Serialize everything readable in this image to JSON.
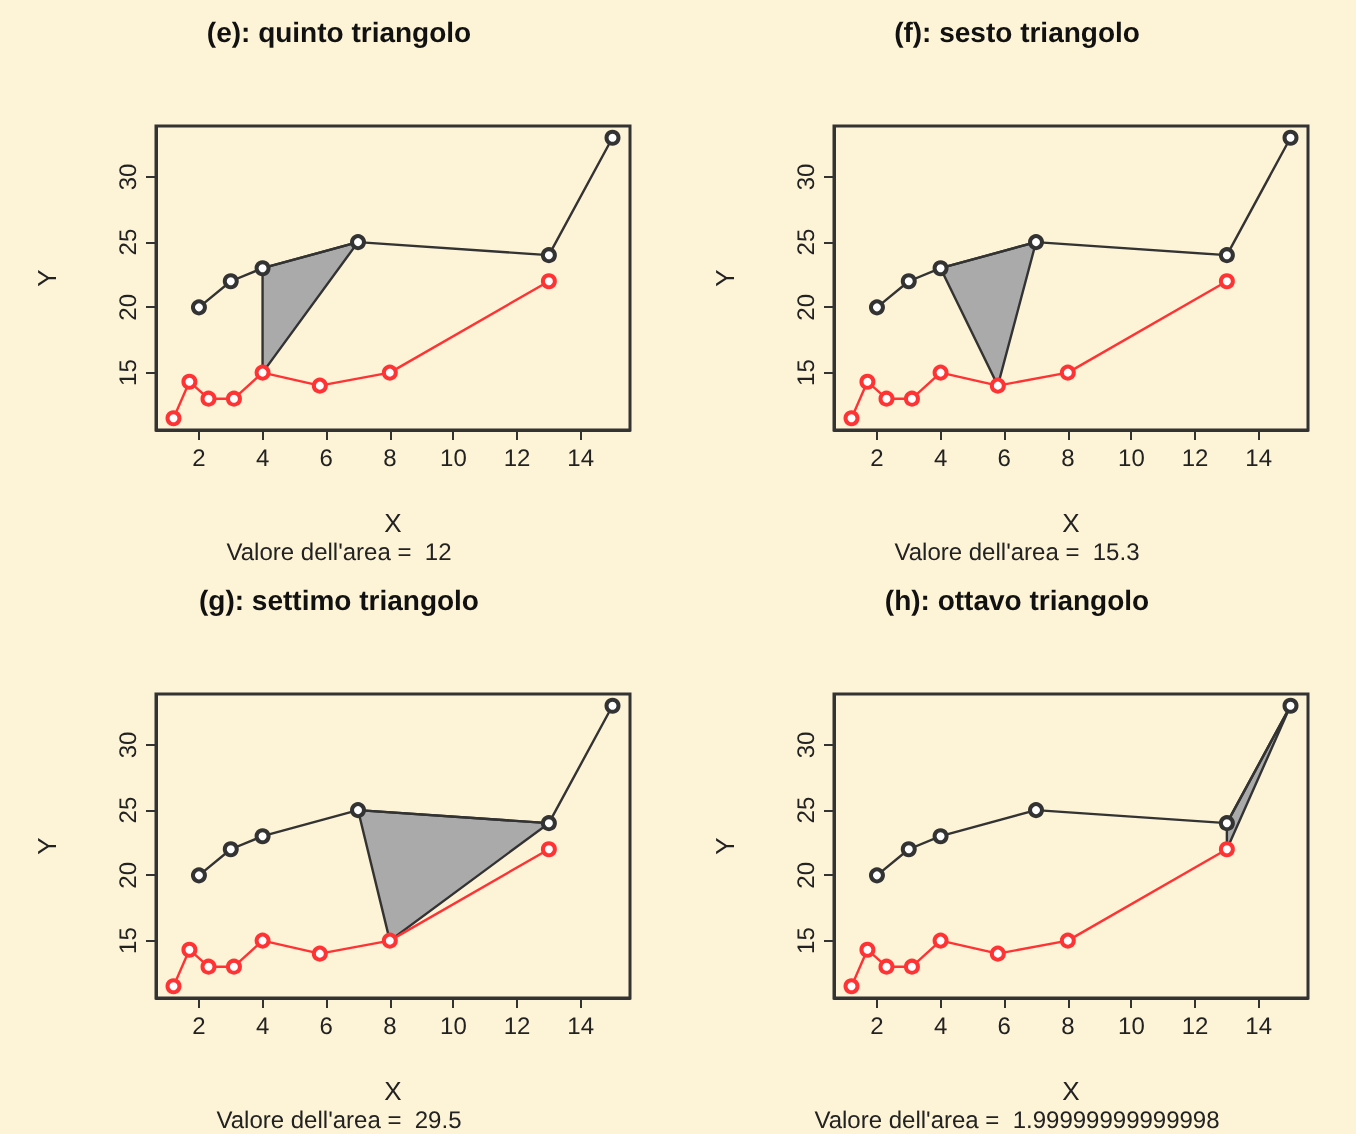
{
  "chart_data": [
    {
      "type": "line",
      "title": "(e): quinto triangolo",
      "xlabel": "X",
      "ylabel": "Y",
      "annotations": [
        "Valore dell'area =  12"
      ],
      "xlim": [
        0.65,
        15.55
      ],
      "ylim": [
        10.6,
        33.9
      ],
      "xticks": [
        2,
        4,
        6,
        8,
        10,
        12,
        14
      ],
      "yticks": [
        15,
        20,
        25,
        30
      ],
      "series": [
        {
          "type": "area",
          "color": "#aaaaaa",
          "x": [
            4,
            7,
            4
          ],
          "values": [
            23,
            25,
            15
          ]
        },
        {
          "color": "#333333",
          "marker": "circle",
          "x": [
            2,
            3,
            4,
            7,
            13,
            15
          ],
          "values": [
            20,
            22,
            23,
            25,
            24,
            33
          ]
        },
        {
          "color": "#ff3333",
          "marker": "circle",
          "x": [
            1.2,
            1.7,
            2.3,
            3.1,
            4,
            5.8,
            8,
            13
          ],
          "values": [
            11.5,
            14.3,
            13,
            13,
            15,
            14,
            15,
            22
          ]
        }
      ]
    },
    {
      "type": "line",
      "title": "(f): sesto triangolo",
      "xlabel": "X",
      "ylabel": "Y",
      "annotations": [
        "Valore dell'area =  15.3"
      ],
      "xlim": [
        0.65,
        15.55
      ],
      "ylim": [
        10.6,
        33.9
      ],
      "xticks": [
        2,
        4,
        6,
        8,
        10,
        12,
        14
      ],
      "yticks": [
        15,
        20,
        25,
        30
      ],
      "series": [
        {
          "type": "area",
          "color": "#aaaaaa",
          "x": [
            4,
            7,
            5.8
          ],
          "values": [
            23,
            25,
            14
          ]
        },
        {
          "color": "#333333",
          "marker": "circle",
          "x": [
            2,
            3,
            4,
            7,
            13,
            15
          ],
          "values": [
            20,
            22,
            23,
            25,
            24,
            33
          ]
        },
        {
          "color": "#ff3333",
          "marker": "circle",
          "x": [
            1.2,
            1.7,
            2.3,
            3.1,
            4,
            5.8,
            8,
            13
          ],
          "values": [
            11.5,
            14.3,
            13,
            13,
            15,
            14,
            15,
            22
          ]
        }
      ]
    },
    {
      "type": "line",
      "title": "(g): settimo triangolo",
      "xlabel": "X",
      "ylabel": "Y",
      "annotations": [
        "Valore dell'area =  29.5"
      ],
      "xlim": [
        0.65,
        15.55
      ],
      "ylim": [
        10.6,
        33.9
      ],
      "xticks": [
        2,
        4,
        6,
        8,
        10,
        12,
        14
      ],
      "yticks": [
        15,
        20,
        25,
        30
      ],
      "series": [
        {
          "type": "area",
          "color": "#aaaaaa",
          "x": [
            7,
            13,
            8
          ],
          "values": [
            25,
            24,
            15
          ]
        },
        {
          "color": "#333333",
          "marker": "circle",
          "x": [
            2,
            3,
            4,
            7,
            13,
            15
          ],
          "values": [
            20,
            22,
            23,
            25,
            24,
            33
          ]
        },
        {
          "color": "#ff3333",
          "marker": "circle",
          "x": [
            1.2,
            1.7,
            2.3,
            3.1,
            4,
            5.8,
            8,
            13
          ],
          "values": [
            11.5,
            14.3,
            13,
            13,
            15,
            14,
            15,
            22
          ]
        }
      ]
    },
    {
      "type": "line",
      "title": "(h): ottavo triangolo",
      "xlabel": "X",
      "ylabel": "Y",
      "annotations": [
        "Valore dell'area =  1.99999999999998"
      ],
      "xlim": [
        0.65,
        15.55
      ],
      "ylim": [
        10.6,
        33.9
      ],
      "xticks": [
        2,
        4,
        6,
        8,
        10,
        12,
        14
      ],
      "yticks": [
        15,
        20,
        25,
        30
      ],
      "series": [
        {
          "type": "area",
          "color": "#aaaaaa",
          "x": [
            13,
            15,
            13
          ],
          "values": [
            24,
            33,
            22
          ]
        },
        {
          "color": "#333333",
          "marker": "circle",
          "x": [
            2,
            3,
            4,
            7,
            13,
            15
          ],
          "values": [
            20,
            22,
            23,
            25,
            24,
            33
          ]
        },
        {
          "color": "#ff3333",
          "marker": "circle",
          "x": [
            1.2,
            1.7,
            2.3,
            3.1,
            4,
            5.8,
            8,
            13
          ],
          "values": [
            11.5,
            14.3,
            13,
            13,
            15,
            14,
            15,
            22
          ]
        }
      ]
    }
  ]
}
